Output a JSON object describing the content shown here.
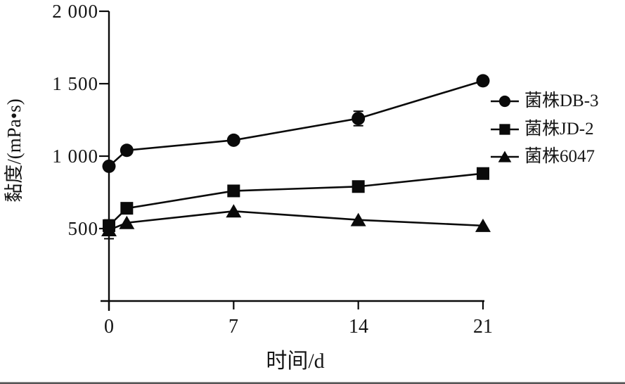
{
  "figure": {
    "background": "#ffffff",
    "ink_color": "#0a0a0a"
  },
  "chart_data": {
    "type": "line",
    "title": "",
    "xlabel": "时间/d",
    "ylabel": "黏度/(mPa•s)",
    "x": [
      0,
      1,
      7,
      14,
      21
    ],
    "xlim": [
      0,
      21
    ],
    "ylim": [
      0,
      2000
    ],
    "x_ticks": [
      0,
      7,
      14,
      21
    ],
    "x_tick_labels": [
      "0",
      "7",
      "14",
      "21"
    ],
    "y_ticks": [
      2000,
      1500,
      1000,
      500
    ],
    "y_tick_labels": [
      "2 000",
      "1 500",
      "1 000",
      "500"
    ],
    "grid": false,
    "legend_position": "right",
    "series": [
      {
        "name": "菌株DB-3",
        "marker": "circle",
        "color": "#0a0a0a",
        "values": [
          930,
          1040,
          1110,
          1260,
          1520
        ],
        "errors": [
          0,
          0,
          0,
          50,
          0
        ]
      },
      {
        "name": "菌株JD-2",
        "marker": "square",
        "color": "#0a0a0a",
        "values": [
          520,
          640,
          760,
          790,
          880
        ],
        "errors": [
          40,
          0,
          0,
          0,
          0
        ]
      },
      {
        "name": "菌株6047",
        "marker": "triangle",
        "color": "#0a0a0a",
        "values": [
          490,
          540,
          620,
          560,
          520
        ],
        "errors": [
          60,
          0,
          0,
          0,
          0
        ]
      }
    ]
  }
}
